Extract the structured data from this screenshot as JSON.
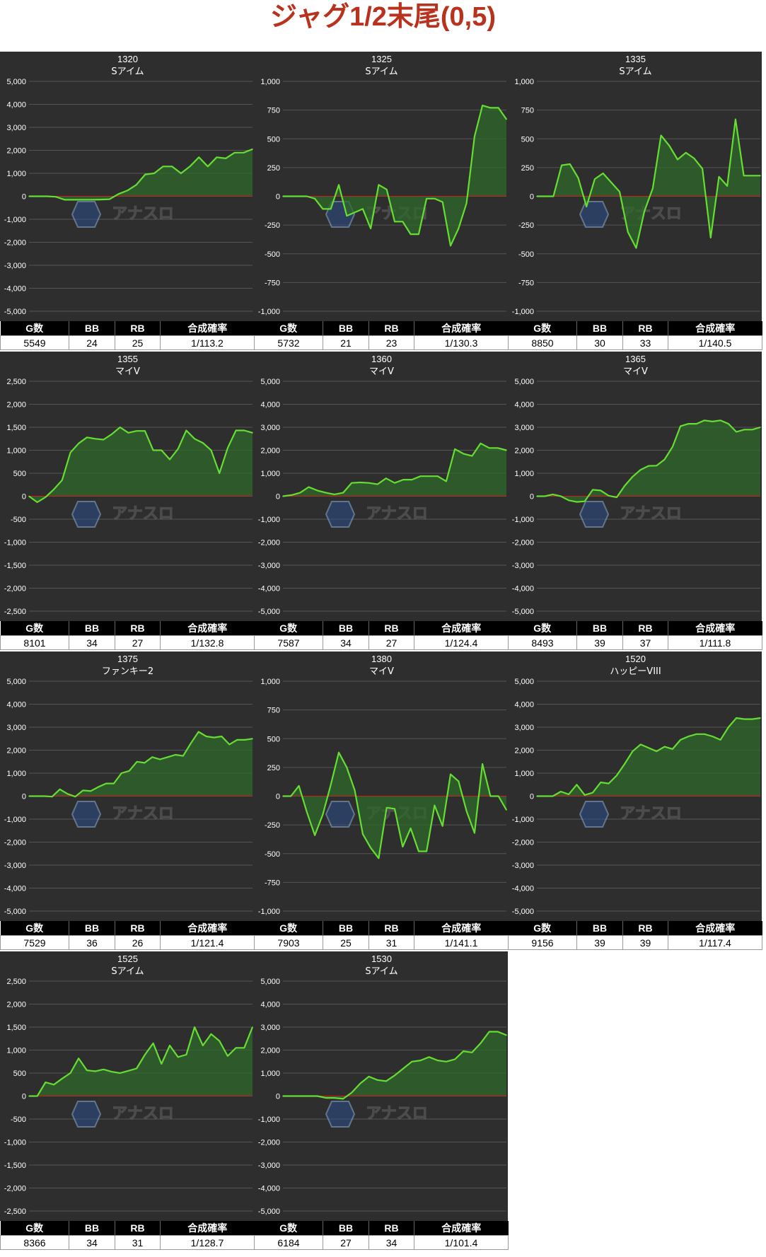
{
  "title": "ジャグ1/2末尾(0,5)",
  "colors": {
    "line": "#66dd33",
    "fill": "#2f6a2b",
    "zero": "#cc2222",
    "panel": "#2e2e2e",
    "title": "#b8321d"
  },
  "stats_headers": [
    "G数",
    "BB",
    "RB",
    "合成確率"
  ],
  "chart_data": [
    {
      "type": "area",
      "machine": "1320",
      "model": "Sアイム",
      "y_ticks": [
        5000,
        4000,
        3000,
        2000,
        1000,
        0,
        -1000,
        -2000,
        -3000,
        -4000,
        -5000
      ],
      "ylim": [
        -5000,
        5000
      ],
      "values": [
        0,
        0,
        0,
        -20,
        -150,
        -150,
        -150,
        -150,
        -140,
        -130,
        100,
        250,
        500,
        950,
        1000,
        1300,
        1300,
        1000,
        1300,
        1700,
        1300,
        1700,
        1650,
        1900,
        1900,
        2050
      ],
      "stats": {
        "games": "5549",
        "bb": "24",
        "rb": "25",
        "rate": "1/113.2"
      }
    },
    {
      "type": "area",
      "machine": "1325",
      "model": "Sアイム",
      "y_ticks": [
        1000,
        750,
        500,
        250,
        0,
        -250,
        -500,
        -750,
        -1000
      ],
      "ylim": [
        -1000,
        1000
      ],
      "values": [
        0,
        0,
        0,
        0,
        -20,
        -110,
        -110,
        100,
        -170,
        -140,
        -110,
        -280,
        100,
        60,
        -220,
        -220,
        -330,
        -330,
        -20,
        -20,
        -50,
        -430,
        -280,
        -60,
        520,
        790,
        770,
        770,
        670
      ],
      "stats": {
        "games": "5732",
        "bb": "21",
        "rb": "23",
        "rate": "1/130.3"
      }
    },
    {
      "type": "area",
      "machine": "1335",
      "model": "Sアイム",
      "y_ticks": [
        1000,
        750,
        500,
        250,
        0,
        -250,
        -500,
        -750,
        -1000
      ],
      "ylim": [
        -1000,
        1000
      ],
      "values": [
        0,
        0,
        0,
        270,
        280,
        160,
        -90,
        150,
        200,
        120,
        40,
        -310,
        -450,
        -130,
        70,
        530,
        440,
        320,
        380,
        330,
        240,
        -360,
        170,
        90,
        670,
        180,
        180,
        180
      ],
      "stats": {
        "games": "8850",
        "bb": "30",
        "rb": "33",
        "rate": "1/140.5"
      }
    },
    {
      "type": "area",
      "machine": "1355",
      "model": "マイV",
      "y_ticks": [
        2500,
        2000,
        1500,
        1000,
        500,
        0,
        -500,
        -1000,
        -1500,
        -2000,
        -2500
      ],
      "ylim": [
        -2500,
        2500
      ],
      "values": [
        0,
        -130,
        -20,
        150,
        350,
        950,
        1150,
        1280,
        1250,
        1230,
        1350,
        1500,
        1380,
        1420,
        1420,
        1000,
        1000,
        800,
        1030,
        1430,
        1250,
        1160,
        1000,
        500,
        1050,
        1430,
        1430,
        1380
      ],
      "stats": {
        "games": "8101",
        "bb": "34",
        "rb": "27",
        "rate": "1/132.8"
      }
    },
    {
      "type": "area",
      "machine": "1360",
      "model": "マイV",
      "y_ticks": [
        5000,
        4000,
        3000,
        2000,
        1000,
        0,
        -1000,
        -2000,
        -3000,
        -4000,
        -5000
      ],
      "ylim": [
        -5000,
        5000
      ],
      "values": [
        0,
        50,
        150,
        400,
        250,
        150,
        80,
        150,
        580,
        600,
        580,
        520,
        780,
        580,
        720,
        720,
        870,
        870,
        870,
        650,
        2050,
        1850,
        1750,
        2300,
        2100,
        2100,
        2000
      ],
      "stats": {
        "games": "7587",
        "bb": "34",
        "rb": "27",
        "rate": "1/124.4"
      }
    },
    {
      "type": "area",
      "machine": "1365",
      "model": "マイV",
      "y_ticks": [
        5000,
        4000,
        3000,
        2000,
        1000,
        0,
        -1000,
        -2000,
        -3000,
        -4000,
        -5000
      ],
      "ylim": [
        -5000,
        5000
      ],
      "values": [
        0,
        0,
        80,
        0,
        -180,
        -250,
        -220,
        280,
        250,
        20,
        -50,
        450,
        850,
        1150,
        1320,
        1330,
        1600,
        2150,
        3050,
        3150,
        3150,
        3300,
        3250,
        3300,
        3150,
        2800,
        2900,
        2900,
        3000
      ],
      "stats": {
        "games": "8493",
        "bb": "39",
        "rb": "37",
        "rate": "1/111.8"
      }
    },
    {
      "type": "area",
      "machine": "1375",
      "model": "ファンキー2",
      "y_ticks": [
        5000,
        4000,
        3000,
        2000,
        1000,
        0,
        -1000,
        -2000,
        -3000,
        -4000,
        -5000
      ],
      "ylim": [
        -5000,
        5000
      ],
      "values": [
        0,
        0,
        0,
        -20,
        300,
        100,
        -20,
        250,
        220,
        400,
        550,
        550,
        1000,
        1100,
        1500,
        1450,
        1700,
        1600,
        1700,
        1800,
        1750,
        2300,
        2800,
        2600,
        2550,
        2600,
        2250,
        2450,
        2450,
        2500
      ],
      "stats": {
        "games": "7529",
        "bb": "36",
        "rb": "26",
        "rate": "1/121.4"
      }
    },
    {
      "type": "area",
      "machine": "1380",
      "model": "マイV",
      "y_ticks": [
        1000,
        750,
        500,
        250,
        0,
        -250,
        -500,
        -750,
        -1000
      ],
      "ylim": [
        -1000,
        1000
      ],
      "values": [
        0,
        0,
        90,
        -140,
        -340,
        -160,
        100,
        380,
        250,
        50,
        -330,
        -450,
        -540,
        -100,
        -110,
        -440,
        -280,
        -480,
        -480,
        -80,
        -260,
        190,
        130,
        -130,
        -320,
        280,
        0,
        0,
        -120
      ],
      "stats": {
        "games": "7903",
        "bb": "25",
        "rb": "31",
        "rate": "1/141.1"
      }
    },
    {
      "type": "area",
      "machine": "1520",
      "model": "ハッピーVIII",
      "y_ticks": [
        5000,
        4000,
        3000,
        2000,
        1000,
        0,
        -1000,
        -2000,
        -3000,
        -4000,
        -5000
      ],
      "ylim": [
        -5000,
        5000
      ],
      "values": [
        0,
        0,
        0,
        200,
        80,
        500,
        50,
        150,
        600,
        550,
        900,
        1400,
        1950,
        2250,
        2100,
        1950,
        2150,
        2050,
        2450,
        2600,
        2700,
        2700,
        2600,
        2450,
        3000,
        3400,
        3350,
        3350,
        3400
      ],
      "stats": {
        "games": "9156",
        "bb": "39",
        "rb": "39",
        "rate": "1/117.4"
      }
    },
    {
      "type": "area",
      "machine": "1525",
      "model": "Sアイム",
      "y_ticks": [
        2500,
        2000,
        1500,
        1000,
        500,
        0,
        -500,
        -1000,
        -1500,
        -2000,
        -2500
      ],
      "ylim": [
        -2500,
        2500
      ],
      "values": [
        0,
        0,
        300,
        250,
        380,
        500,
        820,
        560,
        540,
        580,
        530,
        500,
        550,
        600,
        900,
        1150,
        700,
        1100,
        850,
        900,
        1500,
        1100,
        1350,
        1200,
        870,
        1050,
        1050,
        1500
      ],
      "stats": {
        "games": "8366",
        "bb": "34",
        "rb": "31",
        "rate": "1/128.7"
      }
    },
    {
      "type": "area",
      "machine": "1530",
      "model": "Sアイム",
      "y_ticks": [
        5000,
        4000,
        3000,
        2000,
        1000,
        0,
        -1000,
        -2000,
        -3000,
        -4000,
        -5000
      ],
      "ylim": [
        -5000,
        5000
      ],
      "values": [
        0,
        0,
        0,
        0,
        0,
        -80,
        -80,
        -120,
        150,
        550,
        850,
        700,
        650,
        900,
        1200,
        1500,
        1550,
        1700,
        1550,
        1500,
        1600,
        1950,
        1900,
        2300,
        2800,
        2800,
        2650
      ],
      "stats": {
        "games": "6184",
        "bb": "27",
        "rb": "34",
        "rate": "1/101.4"
      }
    }
  ]
}
